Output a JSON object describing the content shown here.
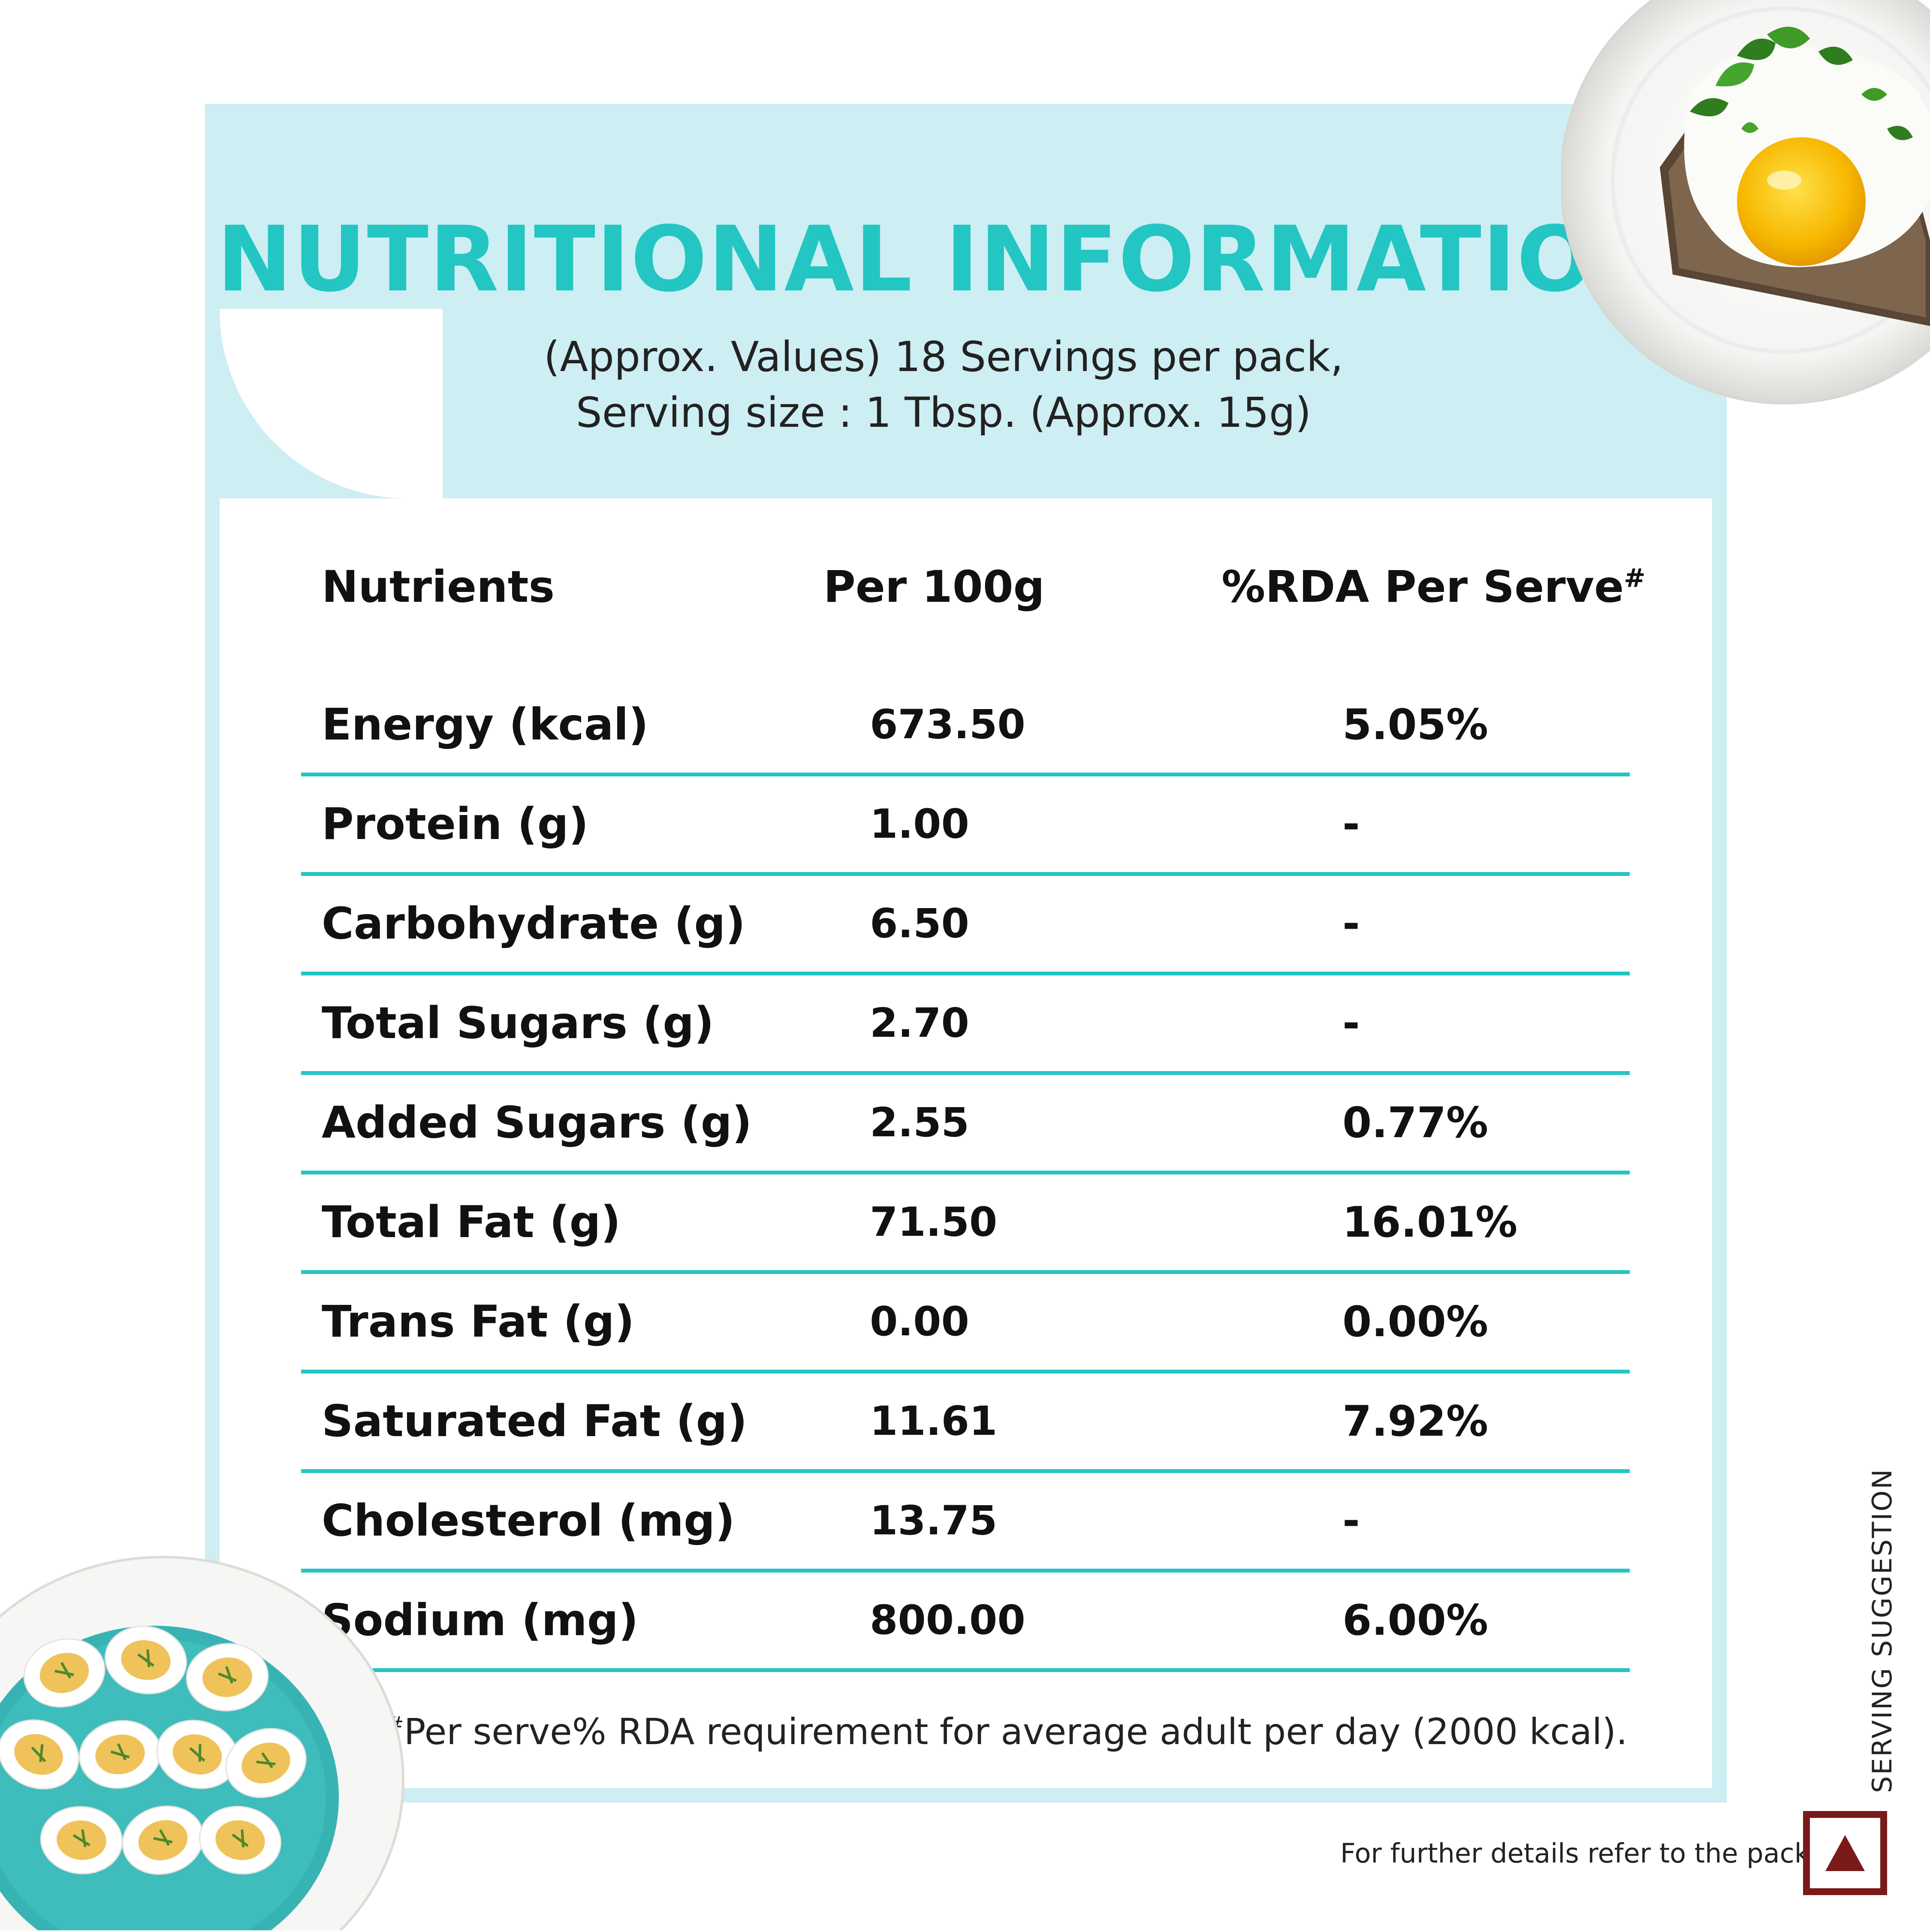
{
  "header": {
    "title": "NUTRITIONAL INFORMATION",
    "subtitle_line1": "(Approx. Values) 18 Servings per pack,",
    "subtitle_line2": "Serving size : 1 Tbsp. (Approx. 15g)"
  },
  "table": {
    "columns": {
      "nutrients": "Nutrients",
      "per100g": "Per 100g",
      "rda": "%RDA Per Serve",
      "rda_mark": "#"
    },
    "rows": [
      {
        "name": "Energy (kcal)",
        "per100g": "673.50",
        "rda": "5.05%"
      },
      {
        "name": "Protein (g)",
        "per100g": "1.00",
        "rda": "-"
      },
      {
        "name": "Carbohydrate (g)",
        "per100g": "6.50",
        "rda": "-"
      },
      {
        "name": "Total Sugars (g)",
        "per100g": "2.70",
        "rda": "-"
      },
      {
        "name": "Added Sugars (g)",
        "per100g": "2.55",
        "rda": "0.77%"
      },
      {
        "name": "Total Fat (g)",
        "per100g": "71.50",
        "rda": "16.01%"
      },
      {
        "name": "Trans Fat (g)",
        "per100g": "0.00",
        "rda": "0.00%"
      },
      {
        "name": "Saturated Fat (g)",
        "per100g": "11.61",
        "rda": "7.92%"
      },
      {
        "name": "Cholesterol (mg)",
        "per100g": "13.75",
        "rda": "-"
      },
      {
        "name": "Sodium (mg)",
        "per100g": "800.00",
        "rda": "6.00%"
      }
    ]
  },
  "footnote": {
    "mark": "#",
    "text": "Per serve% RDA requirement for average adult per day (2000 kcal)."
  },
  "serving_suggestion": "SERVING SUGGESTION",
  "bottom_note": "For further details refer to the pack.",
  "icons": [
    "fried-egg-toast-plate-icon",
    "deviled-eggs-plate-icon",
    "non-veg-mark-icon"
  ],
  "colors": {
    "accent": "#23c6c3",
    "band": "#cdeef2",
    "mark": "#7a1a1a"
  }
}
